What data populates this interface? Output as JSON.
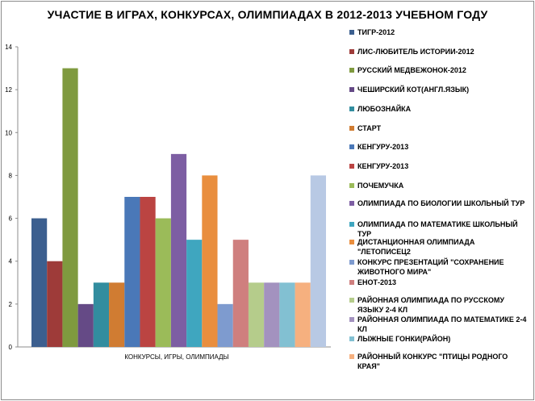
{
  "chart_data": {
    "type": "bar",
    "title": "УЧАСТИЕ В ИГРАХ, КОНКУРСАХ, ОЛИМПИАДАХ В 2012-2013 УЧЕБНОМ ГОДУ",
    "xlabel": "КОНКУРСЫ, ИГРЫ, ОЛИМПИАДЫ",
    "ylabel": "",
    "ylim": [
      0,
      14
    ],
    "yticks": [
      "0",
      "2",
      "4",
      "6",
      "8",
      "10",
      "12",
      "14"
    ],
    "grid": false,
    "legend_position": "right",
    "categories": [
      "КОНКУРСЫ, ИГРЫ, ОЛИМПИАДЫ"
    ],
    "series": [
      {
        "name": "ТИГР-2012",
        "values": [
          6
        ],
        "color": "#3c5f8f"
      },
      {
        "name": "ЛИС-ЛЮБИТЕЛЬ ИСТОРИИ-2012",
        "values": [
          4
        ],
        "color": "#9e3b39"
      },
      {
        "name": "РУССКИЙ МЕДВЕЖОНОК-2012",
        "values": [
          13
        ],
        "color": "#7f9a3f"
      },
      {
        "name": "ЧЕШИРСКИЙ КОТ(АНГЛ.ЯЗЫК)",
        "values": [
          2
        ],
        "color": "#654a86"
      },
      {
        "name": "ЛЮБОЗНАЙКА",
        "values": [
          3
        ],
        "color": "#328d9f"
      },
      {
        "name": "СТАРТ",
        "values": [
          3
        ],
        "color": "#d07c32"
      },
      {
        "name": "КЕНГУРУ-2013",
        "values": [
          7
        ],
        "color": "#4a78b8"
      },
      {
        "name": "КЕНГУРУ-2013",
        "values": [
          7
        ],
        "color": "#bb4442"
      },
      {
        "name": "ПОЧЕМУЧКА",
        "values": [
          6
        ],
        "color": "#9bbb59"
      },
      {
        "name": "ОЛИМПИАДА ПО БИОЛОГИИ ШКОЛЬНЫЙ ТУР",
        "values": [
          9
        ],
        "color": "#7d5ea3"
      },
      {
        "name": "ОЛИМПИАДА ПО МАТЕМАТИКЕ ШКОЛЬНЫЙ ТУР",
        "values": [
          5
        ],
        "color": "#3fa6bf"
      },
      {
        "name": "ДИСТАНЦИОННАЯ ОЛИМПИАДА \"ЛЕТОПИСЕЦ2",
        "values": [
          8
        ],
        "color": "#e98e3e"
      },
      {
        "name": "КОНКУРС ПРЕЗЕНТАЦИЙ \"СОХРАНЕНИЕ ЖИВОТНОГО МИРА\"",
        "values": [
          2
        ],
        "color": "#7e9bcf"
      },
      {
        "name": "ЕНОТ-2013",
        "values": [
          5
        ],
        "color": "#cf7f7e"
      },
      {
        "name": "РАЙОННАЯ ОЛИМПИАДА ПО РУССКОМУ ЯЗЫКУ 2-4 КЛ",
        "values": [
          3
        ],
        "color": "#b5cc8b"
      },
      {
        "name": "РАЙОННАЯ ОЛИМПИАДА ПО МАТЕМАТИКЕ 2-4 КЛ",
        "values": [
          3
        ],
        "color": "#a392bf"
      },
      {
        "name": "ЛЫЖНЫЕ ГОНКИ(РАЙОН)",
        "values": [
          3
        ],
        "color": "#82c0d2"
      },
      {
        "name": "РАЙОННЫЙ КОНКУРС \"ПТИЦЫ РОДНОГО КРАЯ\"",
        "values": [
          3
        ],
        "color": "#f6b07f"
      },
      {
        "name": "",
        "values": [
          8
        ],
        "color": "#b8c9e4"
      }
    ]
  }
}
